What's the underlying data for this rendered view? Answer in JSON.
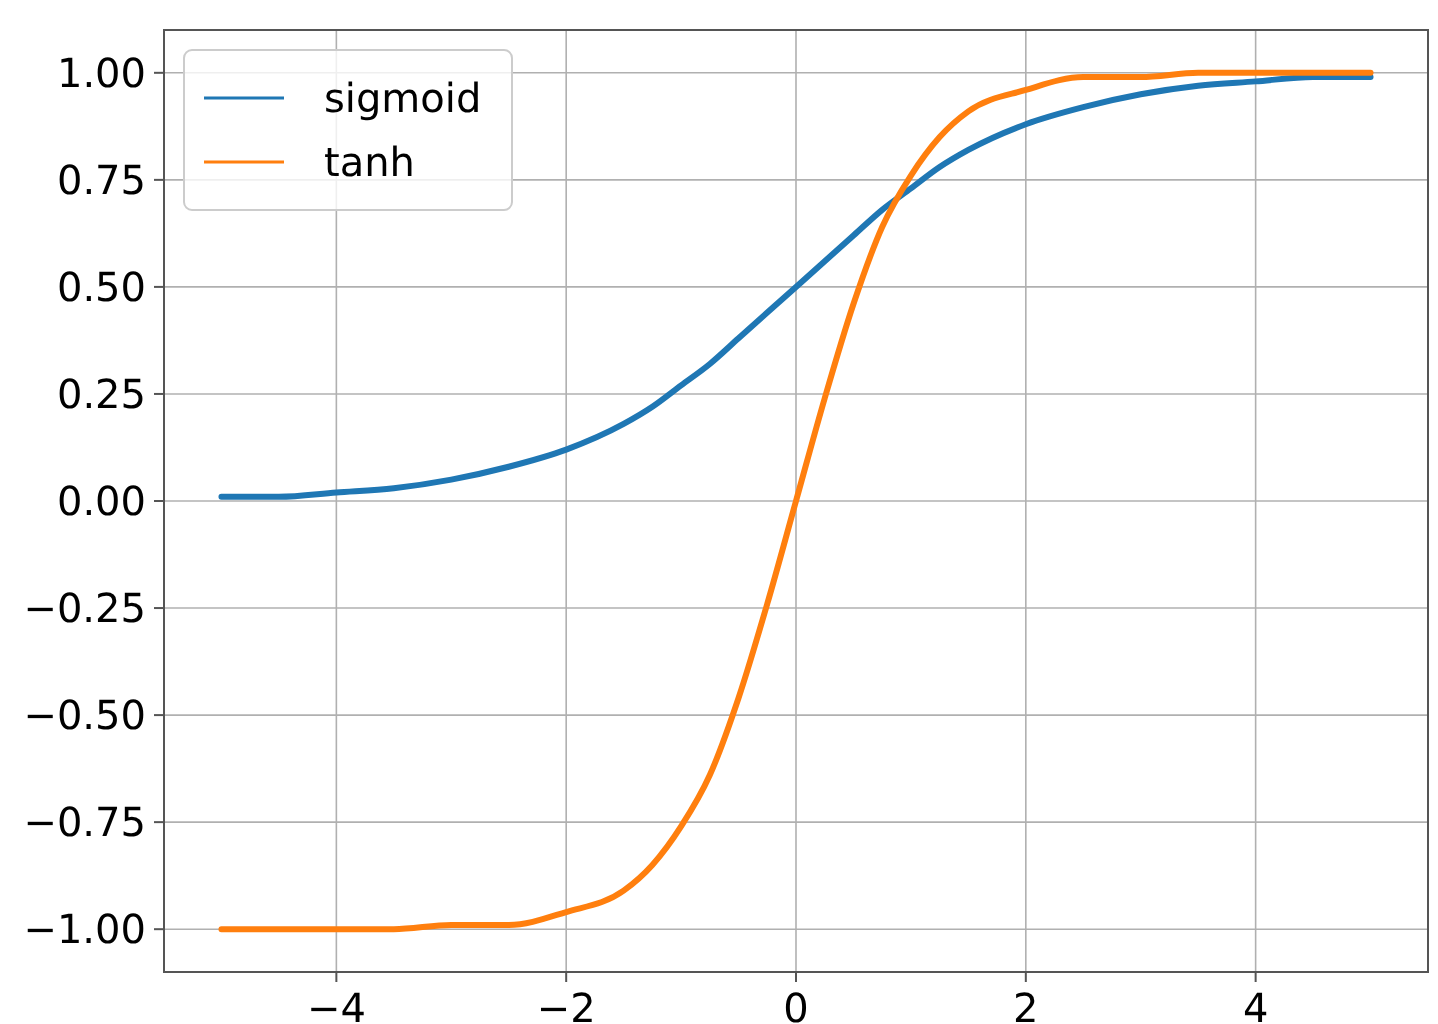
{
  "chart_data": {
    "type": "line",
    "x": [
      -5,
      -4.5,
      -4,
      -3.5,
      -3,
      -2.5,
      -2,
      -1.5,
      -1.25,
      -1,
      -0.75,
      -0.5,
      -0.25,
      0,
      0.25,
      0.5,
      0.75,
      1,
      1.25,
      1.5,
      2,
      2.5,
      3,
      3.5,
      4,
      4.5,
      5
    ],
    "series": [
      {
        "name": "sigmoid",
        "color": "#1f77b4",
        "values": [
          0.01,
          0.01,
          0.02,
          0.03,
          0.05,
          0.08,
          0.12,
          0.18,
          0.22,
          0.27,
          0.32,
          0.38,
          0.44,
          0.5,
          0.56,
          0.62,
          0.68,
          0.73,
          0.78,
          0.82,
          0.88,
          0.92,
          0.95,
          0.97,
          0.98,
          0.99,
          0.99
        ]
      },
      {
        "name": "tanh",
        "color": "#ff7f0e",
        "values": [
          -1,
          -1,
          -1,
          -1,
          -0.99,
          -0.99,
          -0.96,
          -0.91,
          -0.85,
          -0.76,
          -0.64,
          -0.46,
          -0.24,
          0,
          0.24,
          0.46,
          0.64,
          0.76,
          0.85,
          0.91,
          0.96,
          0.99,
          0.99,
          1,
          1,
          1,
          1
        ]
      }
    ],
    "xlim": [
      -5.5,
      5.5
    ],
    "xticks": [
      {
        "value": -4,
        "label": "−4"
      },
      {
        "value": -2,
        "label": "−2"
      },
      {
        "value": 0,
        "label": "0"
      },
      {
        "value": 2,
        "label": "2"
      },
      {
        "value": 4,
        "label": "4"
      }
    ],
    "ylim": [
      -1.1,
      1.1
    ],
    "yticks": [
      {
        "value": -1,
        "label": "−1.00"
      },
      {
        "value": -0.75,
        "label": "−0.75"
      },
      {
        "value": -0.5,
        "label": "−0.50"
      },
      {
        "value": -0.25,
        "label": "−0.25"
      },
      {
        "value": 0,
        "label": "0.00"
      },
      {
        "value": 0.25,
        "label": "0.25"
      },
      {
        "value": 0.5,
        "label": "0.50"
      },
      {
        "value": 0.75,
        "label": "0.75"
      },
      {
        "value": 1,
        "label": "1.00"
      }
    ],
    "grid": true,
    "legend": "top left",
    "line_style": "solid",
    "marker": "none"
  }
}
